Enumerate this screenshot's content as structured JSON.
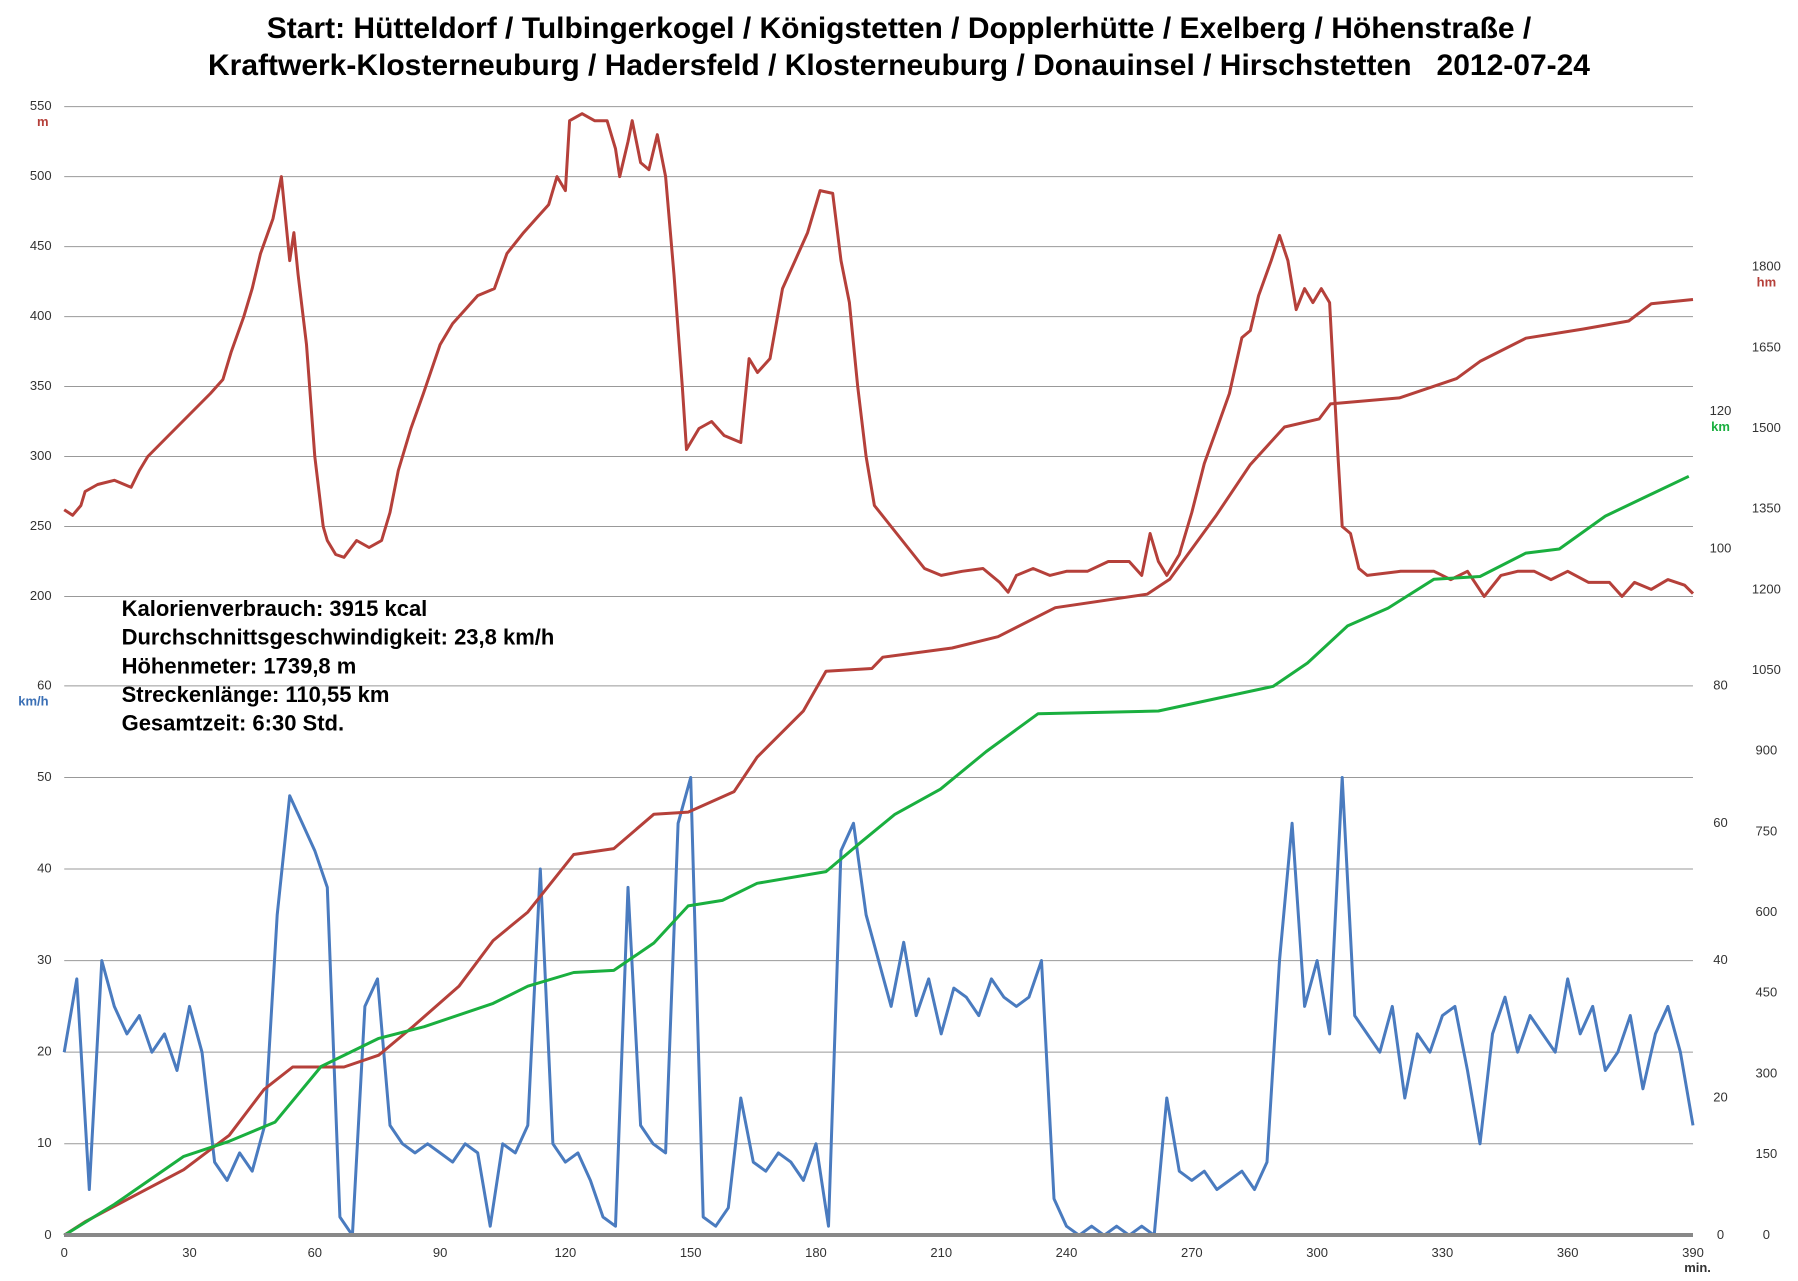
{
  "chart_data": {
    "type": "line",
    "title": [
      "Start: Hütteldorf / Tulbingerkogel / Königstetten / Dopplerhütte / Exelberg / Höhenstraße /",
      "Kraftwerk-Klosterneuburg / Hadersfeld / Klosterneuburg / Donauinsel / Hirschstetten   2012-07-24"
    ],
    "annotations": [
      "Kalorienverbrauch: 3915 kcal",
      "Durchschnittsgeschwindigkeit: 23,8 km/h",
      "Höhenmeter: 1739,8 m",
      "Streckenlänge: 110,55 km",
      "Gesamtzeit: 6:30 Std."
    ],
    "x_label": "min.",
    "xlim": [
      0,
      390
    ],
    "xticks": [
      0,
      30,
      60,
      90,
      120,
      150,
      180,
      210,
      240,
      270,
      300,
      330,
      360,
      390
    ],
    "grid": true,
    "axes": [
      {
        "label": "m",
        "color": "#b5403a",
        "lim": [
          200,
          550
        ],
        "ticks": [
          200,
          250,
          300,
          350,
          400,
          450,
          500,
          550
        ]
      },
      {
        "label": "km/h",
        "color": "#3a6fb5",
        "lim": [
          0,
          60
        ],
        "ticks": [
          0,
          10,
          20,
          30,
          40,
          50,
          60
        ]
      },
      {
        "label": "km",
        "color": "#1aaf3f",
        "lim": [
          0,
          120
        ],
        "ticks": [
          0,
          20,
          40,
          60,
          80,
          100,
          120
        ]
      },
      {
        "label": "hm",
        "color": "#b5403a",
        "lim": [
          0,
          1800
        ],
        "ticks": [
          0,
          150,
          300,
          450,
          600,
          750,
          900,
          1050,
          1200,
          1350,
          1500,
          1650,
          1800
        ]
      }
    ],
    "series": [
      {
        "axis": 1,
        "color": "#4a7bbf",
        "x": [
          0,
          3,
          6,
          9,
          12,
          15,
          18,
          21,
          24,
          27,
          30,
          33,
          36,
          39,
          42,
          45,
          48,
          51,
          54,
          57,
          60,
          63,
          66,
          69,
          72,
          75,
          78,
          81,
          84,
          87,
          90,
          93,
          96,
          99,
          102,
          105,
          108,
          111,
          114,
          117,
          120,
          123,
          126,
          129,
          132,
          135,
          138,
          141,
          144,
          147,
          150,
          153,
          156,
          159,
          162,
          165,
          168,
          171,
          174,
          177,
          180,
          183,
          186,
          189,
          192,
          195,
          198,
          201,
          204,
          207,
          210,
          213,
          216,
          219,
          222,
          225,
          228,
          231,
          234,
          237,
          240,
          243,
          246,
          249,
          252,
          255,
          258,
          261,
          264,
          267,
          270,
          273,
          276,
          279,
          282,
          285,
          288,
          291,
          294,
          297,
          300,
          303,
          306,
          309,
          312,
          315,
          318,
          321,
          324,
          327,
          330,
          333,
          336,
          339,
          342,
          345,
          348,
          351,
          354,
          357,
          360,
          363,
          366,
          369,
          372,
          375,
          378,
          381,
          384,
          387,
          390
        ],
        "values": [
          20,
          28,
          5,
          30,
          25,
          22,
          24,
          20,
          22,
          18,
          25,
          20,
          8,
          6,
          9,
          7,
          12,
          35,
          48,
          45,
          42,
          38,
          2,
          0,
          25,
          28,
          12,
          10,
          9,
          10,
          9,
          8,
          10,
          9,
          1,
          10,
          9,
          12,
          40,
          10,
          8,
          9,
          6,
          2,
          1,
          38,
          12,
          10,
          9,
          45,
          50,
          2,
          1,
          3,
          15,
          8,
          7,
          9,
          8,
          6,
          10,
          1,
          42,
          45,
          35,
          30,
          25,
          32,
          24,
          28,
          22,
          27,
          26,
          24,
          28,
          26,
          25,
          26,
          30,
          4,
          1,
          0,
          1,
          0,
          1,
          0,
          1,
          0,
          15,
          7,
          6,
          7,
          5,
          6,
          7,
          5,
          8,
          30,
          45,
          25,
          30,
          22,
          50,
          24,
          22,
          20,
          25,
          15,
          22,
          20,
          24,
          25,
          18,
          10,
          22,
          26,
          20,
          24,
          22,
          20,
          28,
          22,
          25,
          18,
          20,
          24,
          16,
          22,
          25,
          20,
          12
        ]
      },
      {
        "axis": 0,
        "color": "#b5403a",
        "x": [
          0,
          2,
          4,
          5,
          8,
          12,
          16,
          18,
          20,
          25,
          30,
          35,
          38,
          40,
          43,
          45,
          47,
          50,
          52,
          54,
          55,
          56,
          58,
          60,
          62,
          63,
          65,
          67,
          70,
          73,
          76,
          78,
          80,
          83,
          86,
          90,
          93,
          96,
          99,
          103,
          106,
          110,
          113,
          116,
          118,
          120,
          121,
          124,
          127,
          130,
          132,
          133,
          135,
          136,
          138,
          140,
          142,
          144,
          146,
          148,
          149,
          152,
          155,
          158,
          162,
          164,
          166,
          169,
          172,
          175,
          178,
          181,
          184,
          186,
          188,
          190,
          192,
          194,
          198,
          202,
          206,
          210,
          215,
          220,
          224,
          226,
          228,
          232,
          236,
          240,
          245,
          250,
          255,
          258,
          260,
          262,
          264,
          267,
          270,
          273,
          276,
          279,
          282,
          284,
          286,
          289,
          291,
          293,
          295,
          297,
          299,
          301,
          303,
          305,
          306,
          308,
          310,
          312,
          320,
          328,
          332,
          336,
          340,
          344,
          348,
          352,
          356,
          360,
          365,
          370,
          373,
          376,
          380,
          384,
          388,
          390
        ],
        "values": [
          262,
          258,
          265,
          275,
          280,
          283,
          278,
          290,
          300,
          315,
          330,
          345,
          355,
          375,
          400,
          420,
          445,
          470,
          500,
          440,
          460,
          430,
          380,
          300,
          250,
          240,
          230,
          228,
          240,
          235,
          240,
          260,
          290,
          320,
          345,
          380,
          395,
          405,
          415,
          420,
          445,
          460,
          470,
          480,
          500,
          490,
          540,
          545,
          540,
          540,
          520,
          500,
          525,
          540,
          510,
          505,
          530,
          500,
          430,
          350,
          305,
          320,
          325,
          315,
          310,
          370,
          360,
          370,
          420,
          440,
          460,
          490,
          488,
          440,
          410,
          350,
          300,
          265,
          250,
          235,
          220,
          215,
          218,
          220,
          210,
          203,
          215,
          220,
          215,
          218,
          218,
          225,
          225,
          215,
          245,
          225,
          215,
          230,
          260,
          295,
          320,
          345,
          385,
          390,
          415,
          440,
          458,
          440,
          405,
          420,
          410,
          420,
          410,
          300,
          250,
          245,
          220,
          215,
          218,
          218,
          212,
          218,
          200,
          215,
          218,
          218,
          212,
          218,
          210,
          210,
          200,
          210,
          205,
          212,
          208,
          202
        ]
      },
      {
        "axis": 3,
        "color": "#b5403a",
        "x": [
          0,
          5.2,
          28.6,
          39.5,
          47.8,
          54.7,
          67,
          75.3,
          83.5,
          94.5,
          102.7,
          111,
          122,
          131.6,
          141.2,
          149.4,
          160.4,
          165.9,
          177,
          182.4,
          193.4,
          196,
          212.6,
          223.6,
          237.3,
          259.3,
          264.7,
          275.7,
          284,
          292.2,
          300.5,
          303.2,
          319.7,
          333.4,
          339,
          350,
          363.6,
          374.6,
          380,
          390
        ],
        "values": [
          0,
          26,
          122,
          186,
          271,
          313,
          313,
          335,
          388,
          463,
          548,
          601,
          708,
          719,
          783,
          787,
          825,
          889,
          975,
          1049,
          1054,
          1075,
          1092,
          1113,
          1167,
          1192,
          1220,
          1337,
          1433,
          1503,
          1518,
          1546,
          1557,
          1593,
          1625,
          1668,
          1685,
          1700,
          1732,
          1740
        ]
      },
      {
        "axis": 2,
        "color": "#1aaf3f",
        "x": [
          0,
          12,
          28.6,
          39.5,
          50.5,
          61.5,
          75.3,
          86.2,
          102.7,
          111,
          122,
          131.6,
          141.2,
          149.4,
          157.6,
          165.9,
          182.4,
          190.6,
          198.8,
          209.8,
          220.8,
          233.2,
          262,
          289.5,
          297.7,
          307.3,
          317,
          328,
          339,
          350,
          358,
          369,
          389
        ],
        "values": [
          0,
          4.5,
          11.5,
          13.7,
          16.5,
          24.6,
          28.7,
          30.4,
          33.8,
          36.3,
          38.3,
          38.6,
          42.6,
          48,
          48.8,
          51.3,
          53,
          57.2,
          61.3,
          65,
          70.5,
          76,
          76.4,
          80,
          83.4,
          88.8,
          91.4,
          95.6,
          96,
          99.4,
          100,
          104.8,
          110.6
        ]
      }
    ]
  }
}
